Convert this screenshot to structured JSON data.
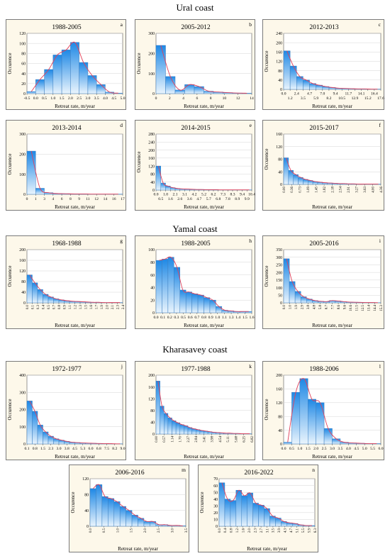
{
  "sections": [
    {
      "title": "Ural coast"
    },
    {
      "title": "Yamal coast"
    },
    {
      "title": "Kharasavey coast"
    }
  ],
  "colors": {
    "bar_top": "#1e88e5",
    "bar_bottom": "#e9f4fd",
    "bar_stroke": "#3d7fc0",
    "curve": "#e0405a",
    "panel_bg": "#fdf8ea",
    "plot_bg": "#ffffff",
    "grid": "#d6d6d6"
  },
  "chart_data": [
    {
      "id": "a",
      "type": "bar",
      "title": "1988-2005",
      "xlabel": "Retreat rate, m/year",
      "ylabel": "Occurence",
      "ylim": [
        0,
        120
      ],
      "yticks": [
        "0",
        "20",
        "40",
        "60",
        "80",
        "100",
        "120"
      ],
      "xticks": [
        "-0.5",
        "0.0",
        "0.5",
        "1.0",
        "1.5",
        "2.0",
        "2.5",
        "3.0",
        "3.5",
        "4.0",
        "4.5",
        "5.0"
      ],
      "tick_rotation": 0,
      "values": [
        4,
        28,
        48,
        77,
        87,
        102,
        62,
        36,
        18,
        3,
        1
      ],
      "fit_curve": true
    },
    {
      "id": "b",
      "type": "bar",
      "title": "2005-2012",
      "xlabel": "Retreat rate, m/year",
      "ylabel": "Occurence",
      "ylim": [
        0,
        300
      ],
      "yticks": [
        "0",
        "100",
        "200",
        "300"
      ],
      "xticks": [
        "0",
        "2",
        "4",
        "6",
        "8",
        "10",
        "12",
        "14"
      ],
      "tick_rotation": 0,
      "values": [
        240,
        85,
        18,
        45,
        35,
        12,
        8,
        5,
        3,
        2
      ],
      "fit_curve": true
    },
    {
      "id": "c",
      "type": "bar",
      "title": "2012-2013",
      "xlabel": "Retreat rate, m/year",
      "ylabel": "Occurence",
      "ylim": [
        0,
        240
      ],
      "yticks": [
        "0",
        "40",
        "80",
        "120",
        "160",
        "200",
        "240"
      ],
      "xticks": [
        "0.0",
        "1.2",
        "2.4",
        "3.5",
        "4.7",
        "5.9",
        "7.0",
        "8.2",
        "9.4",
        "10.5",
        "11.7",
        "12.9",
        "14.1",
        "15.2",
        "16.4",
        "17.6"
      ],
      "tick_rotation": 0,
      "tick_rows": 2,
      "values": [
        165,
        100,
        55,
        40,
        25,
        18,
        12,
        8,
        5,
        4,
        3,
        2,
        2,
        1,
        1
      ],
      "fit_curve": true
    },
    {
      "id": "d",
      "type": "bar",
      "title": "2013-2014",
      "xlabel": "Retreat rate, m/year",
      "ylabel": "Occurence",
      "ylim": [
        0,
        300
      ],
      "yticks": [
        "0",
        "100",
        "200",
        "300"
      ],
      "xticks": [
        "0",
        "1",
        "3",
        "4",
        "6",
        "8",
        "9",
        "11",
        "12",
        "14",
        "16",
        "17"
      ],
      "tick_rotation": 0,
      "values": [
        215,
        30,
        8,
        4,
        3,
        2,
        2,
        1,
        1,
        1,
        1
      ],
      "fit_curve": true
    },
    {
      "id": "e",
      "type": "bar",
      "title": "2014-2015",
      "xlabel": "Retreat rate, m/year",
      "ylabel": "Occurence",
      "ylim": [
        0,
        280
      ],
      "yticks": [
        "0",
        "40",
        "80",
        "120",
        "160",
        "200",
        "240",
        "280"
      ],
      "xticks": [
        "0.0",
        "0.5",
        "1.0",
        "1.6",
        "2.1",
        "2.6",
        "3.1",
        "3.6",
        "4.2",
        "4.7",
        "5.2",
        "5.7",
        "6.2",
        "6.8",
        "7.3",
        "7.8",
        "8.3",
        "8.9",
        "9.4",
        "9.9",
        "10.4"
      ],
      "tick_rotation": 0,
      "tick_rows": 2,
      "values": [
        120,
        35,
        20,
        12,
        8,
        6,
        5,
        4,
        3,
        3,
        2,
        2,
        2,
        1,
        1,
        1,
        1,
        1,
        1,
        1
      ],
      "fit_curve": true
    },
    {
      "id": "f",
      "type": "bar",
      "title": "2015-2017",
      "xlabel": "Retreat rate, m/year",
      "ylabel": "Occurence",
      "ylim": [
        0,
        180
      ],
      "yticks": [
        "0",
        "40",
        "80",
        "120",
        "160"
      ],
      "xticks": [
        "0.00",
        "0.36",
        "0.73",
        "1.09",
        "1.45",
        "1.82",
        "2.18",
        "2.54",
        "2.91",
        "3.27",
        "3.63",
        "4.00",
        "4.36"
      ],
      "tick_rotation": -90,
      "values": [
        95,
        50,
        35,
        25,
        18,
        14,
        10,
        8,
        6,
        5,
        4,
        3,
        3,
        2,
        2,
        1,
        1,
        1,
        1,
        1
      ],
      "fit_curve": true
    },
    {
      "id": "g",
      "type": "bar",
      "title": "1968-1988",
      "xlabel": "Retreat rate, m/year",
      "ylabel": "Occurence",
      "ylim": [
        0,
        200
      ],
      "yticks": [
        "0",
        "40",
        "80",
        "120",
        "160",
        "200"
      ],
      "xticks": [
        "0.0",
        "0.1",
        "0.3",
        "0.4",
        "0.5",
        "0.7",
        "0.8",
        "0.9",
        "1.1",
        "1.2",
        "1.3",
        "1.5",
        "1.6",
        "1.7",
        "1.9",
        "2.0",
        "2.1",
        "2.3",
        "2.4"
      ],
      "tick_rotation": -90,
      "values": [
        105,
        75,
        50,
        32,
        22,
        15,
        11,
        8,
        6,
        5,
        4,
        3,
        2,
        2,
        1,
        1,
        1,
        1
      ],
      "fit_curve": true
    },
    {
      "id": "h",
      "type": "bar",
      "title": "1988-2005",
      "xlabel": "Retreat rate, m/year",
      "ylabel": "",
      "ylim": [
        0,
        100
      ],
      "yticks": [
        "0",
        "20",
        "40",
        "60",
        "80",
        "100"
      ],
      "xticks": [
        "0.0",
        "0.1",
        "0.2",
        "0.3",
        "0.5",
        "0.6",
        "0.7",
        "0.8",
        "0.9",
        "1.0",
        "1.1",
        "1.3",
        "1.4",
        "1.5",
        "1.6"
      ],
      "tick_rotation": 0,
      "values": [
        83,
        85,
        88,
        72,
        36,
        33,
        30,
        28,
        24,
        20,
        10,
        4,
        3,
        2,
        2,
        2
      ],
      "fit_curve": true
    },
    {
      "id": "i",
      "type": "bar",
      "title": "2005-2016",
      "xlabel": "Retreat rate, m/year",
      "ylabel": "Occurence",
      "ylim": [
        0,
        350
      ],
      "yticks": [
        "0",
        "50",
        "100",
        "150",
        "200",
        "250",
        "300",
        "350"
      ],
      "xticks": [
        "0.0",
        "1.0",
        "1.9",
        "2.9",
        "3.8",
        "4.8",
        "5.8",
        "6.7",
        "7.7",
        "8.6",
        "9.6",
        "10.6",
        "11.5",
        "12.5",
        "13.4",
        "14.4",
        "15.3"
      ],
      "tick_rotation": -90,
      "values": [
        290,
        140,
        75,
        40,
        25,
        15,
        10,
        8,
        15,
        12,
        8,
        5,
        4,
        3,
        2,
        2,
        1
      ],
      "fit_curve": true
    },
    {
      "id": "j",
      "type": "bar",
      "title": "1972-1977",
      "xlabel": "Retreat rate, m/year",
      "ylabel": "Occurence",
      "ylim": [
        0,
        400
      ],
      "yticks": [
        "0",
        "100",
        "200",
        "300",
        "400"
      ],
      "xticks": [
        "0.1",
        "0.8",
        "1.5",
        "2.3",
        "3.0",
        "3.8",
        "4.5",
        "5.3",
        "6.0",
        "6.8",
        "7.5",
        "8.2",
        "9.0"
      ],
      "tick_rotation": 0,
      "values": [
        250,
        190,
        110,
        70,
        45,
        30,
        22,
        15,
        10,
        8,
        6,
        5,
        4,
        3,
        2,
        2,
        1,
        1
      ],
      "fit_curve": true
    },
    {
      "id": "k",
      "type": "bar",
      "title": "1977-1988",
      "xlabel": "Retreat rate, m/year",
      "ylabel": "",
      "ylim": [
        0,
        200
      ],
      "yticks": [
        "0",
        "40",
        "80",
        "120",
        "160",
        "200"
      ],
      "xticks": [
        "0.00",
        "0.57",
        "1.14",
        "1.70",
        "2.27",
        "2.84",
        "3.41",
        "3.98",
        "4.54",
        "5.11",
        "5.68",
        "6.25",
        "6.82"
      ],
      "tick_rotation": -90,
      "values": [
        180,
        95,
        70,
        55,
        45,
        38,
        32,
        28,
        22,
        18,
        15,
        12,
        10,
        8,
        6,
        5,
        4,
        3,
        3,
        2,
        2,
        1,
        1,
        1
      ],
      "fit_curve": true
    },
    {
      "id": "l",
      "type": "bar",
      "title": "1988-2006",
      "xlabel": "Retreat rate, m/year",
      "ylabel": "Occurence",
      "ylim": [
        0,
        200
      ],
      "yticks": [
        "0",
        "40",
        "80",
        "120",
        "160",
        "200"
      ],
      "xticks": [
        "0.0",
        "0.5",
        "1.0",
        "1.5",
        "2.0",
        "2.5",
        "3.0",
        "3.5",
        "4.0",
        "4.5",
        "5.0",
        "5.5",
        "6.0"
      ],
      "tick_rotation": 0,
      "values": [
        5,
        150,
        190,
        130,
        120,
        45,
        15,
        5,
        3,
        2,
        1,
        1
      ],
      "fit_curve": true
    },
    {
      "id": "m",
      "type": "bar",
      "title": "2006-2016",
      "xlabel": "Retreat rate, m/year",
      "ylabel": "Occurence",
      "ylim": [
        0,
        120
      ],
      "yticks": [
        "0",
        "40",
        "80",
        "120"
      ],
      "xticks": [
        "0.0",
        "0.5",
        "1.0",
        "1.5",
        "2.0",
        "2.5",
        "3.0",
        "3.5"
      ],
      "tick_rotation": -90,
      "values": [
        95,
        105,
        75,
        70,
        62,
        50,
        40,
        28,
        20,
        12,
        12,
        4,
        4,
        2,
        2,
        1
      ],
      "fit_curve": true
    },
    {
      "id": "n",
      "type": "bar",
      "title": "2016-2022",
      "xlabel": "Retreat rate, m/year",
      "ylabel": "Occurence",
      "ylim": [
        0,
        70
      ],
      "yticks": [
        "0",
        "10",
        "20",
        "30",
        "40",
        "50",
        "60",
        "70"
      ],
      "xticks": [
        "0.0",
        "0.4",
        "0.8",
        "1.2",
        "1.6",
        "2.0",
        "2.3",
        "2.7",
        "3.1",
        "3.5",
        "3.9",
        "4.3",
        "4.7",
        "5.1",
        "5.5",
        "5.9",
        "6.3"
      ],
      "tick_rotation": -90,
      "values": [
        64,
        40,
        38,
        53,
        45,
        49,
        34,
        31,
        26,
        15,
        12,
        7,
        5,
        4,
        2,
        1,
        1
      ],
      "fit_curve": true
    }
  ]
}
